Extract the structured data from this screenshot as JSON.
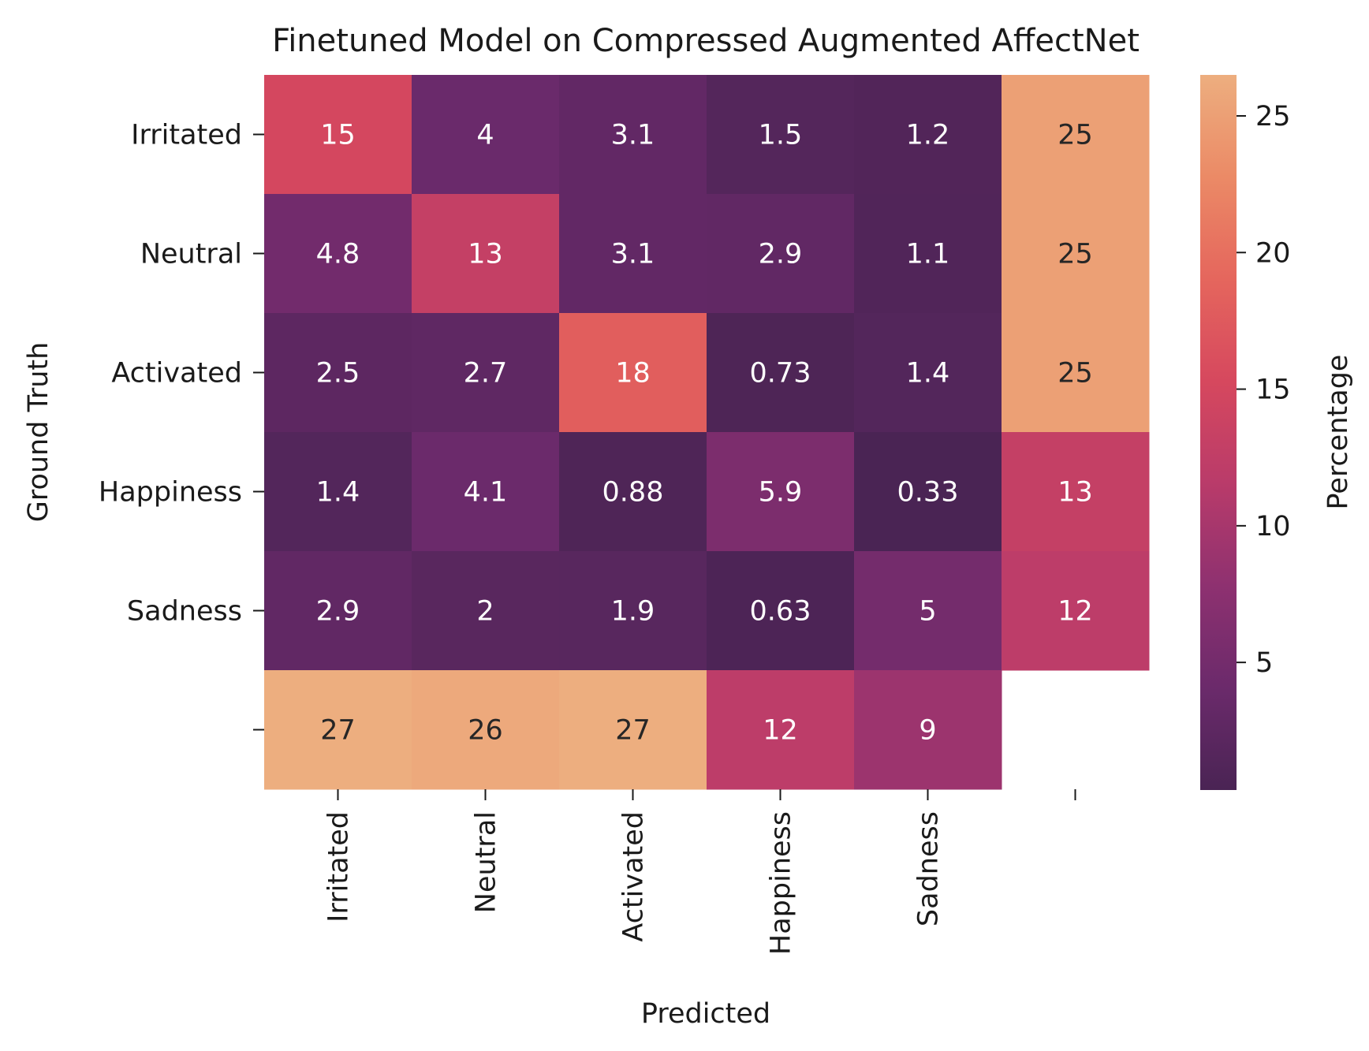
{
  "chart_data": {
    "type": "heatmap",
    "title": "Finetuned Model on Compressed Augmented AffectNet",
    "xlabel": "Predicted",
    "ylabel": "Ground Truth",
    "x_categories": [
      "Irritated",
      "Neutral",
      "Activated",
      "Happiness",
      "Sadness",
      ""
    ],
    "y_categories": [
      "Irritated",
      "Neutral",
      "Activated",
      "Happiness",
      "Sadness",
      ""
    ],
    "values": [
      [
        15,
        4,
        3.1,
        1.5,
        1.2,
        25
      ],
      [
        4.8,
        13,
        3.1,
        2.9,
        1.1,
        25
      ],
      [
        2.5,
        2.7,
        18,
        0.73,
        1.4,
        25
      ],
      [
        1.4,
        4.1,
        0.88,
        5.9,
        0.33,
        13
      ],
      [
        2.9,
        2,
        1.9,
        0.63,
        5,
        12
      ],
      [
        27,
        26,
        27,
        12,
        9,
        null
      ]
    ],
    "colorbar": {
      "label": "Percentage",
      "min": 0.33,
      "max": 26.5,
      "ticks": [
        5,
        10,
        15,
        20,
        25
      ],
      "colormap": "flare-reversed",
      "colors": [
        "#4a2454",
        "#6b2a6b",
        "#8e3170",
        "#b93b6a",
        "#d6485e",
        "#e5665d",
        "#eb8a66",
        "#edae7f"
      ]
    },
    "grid": false
  }
}
